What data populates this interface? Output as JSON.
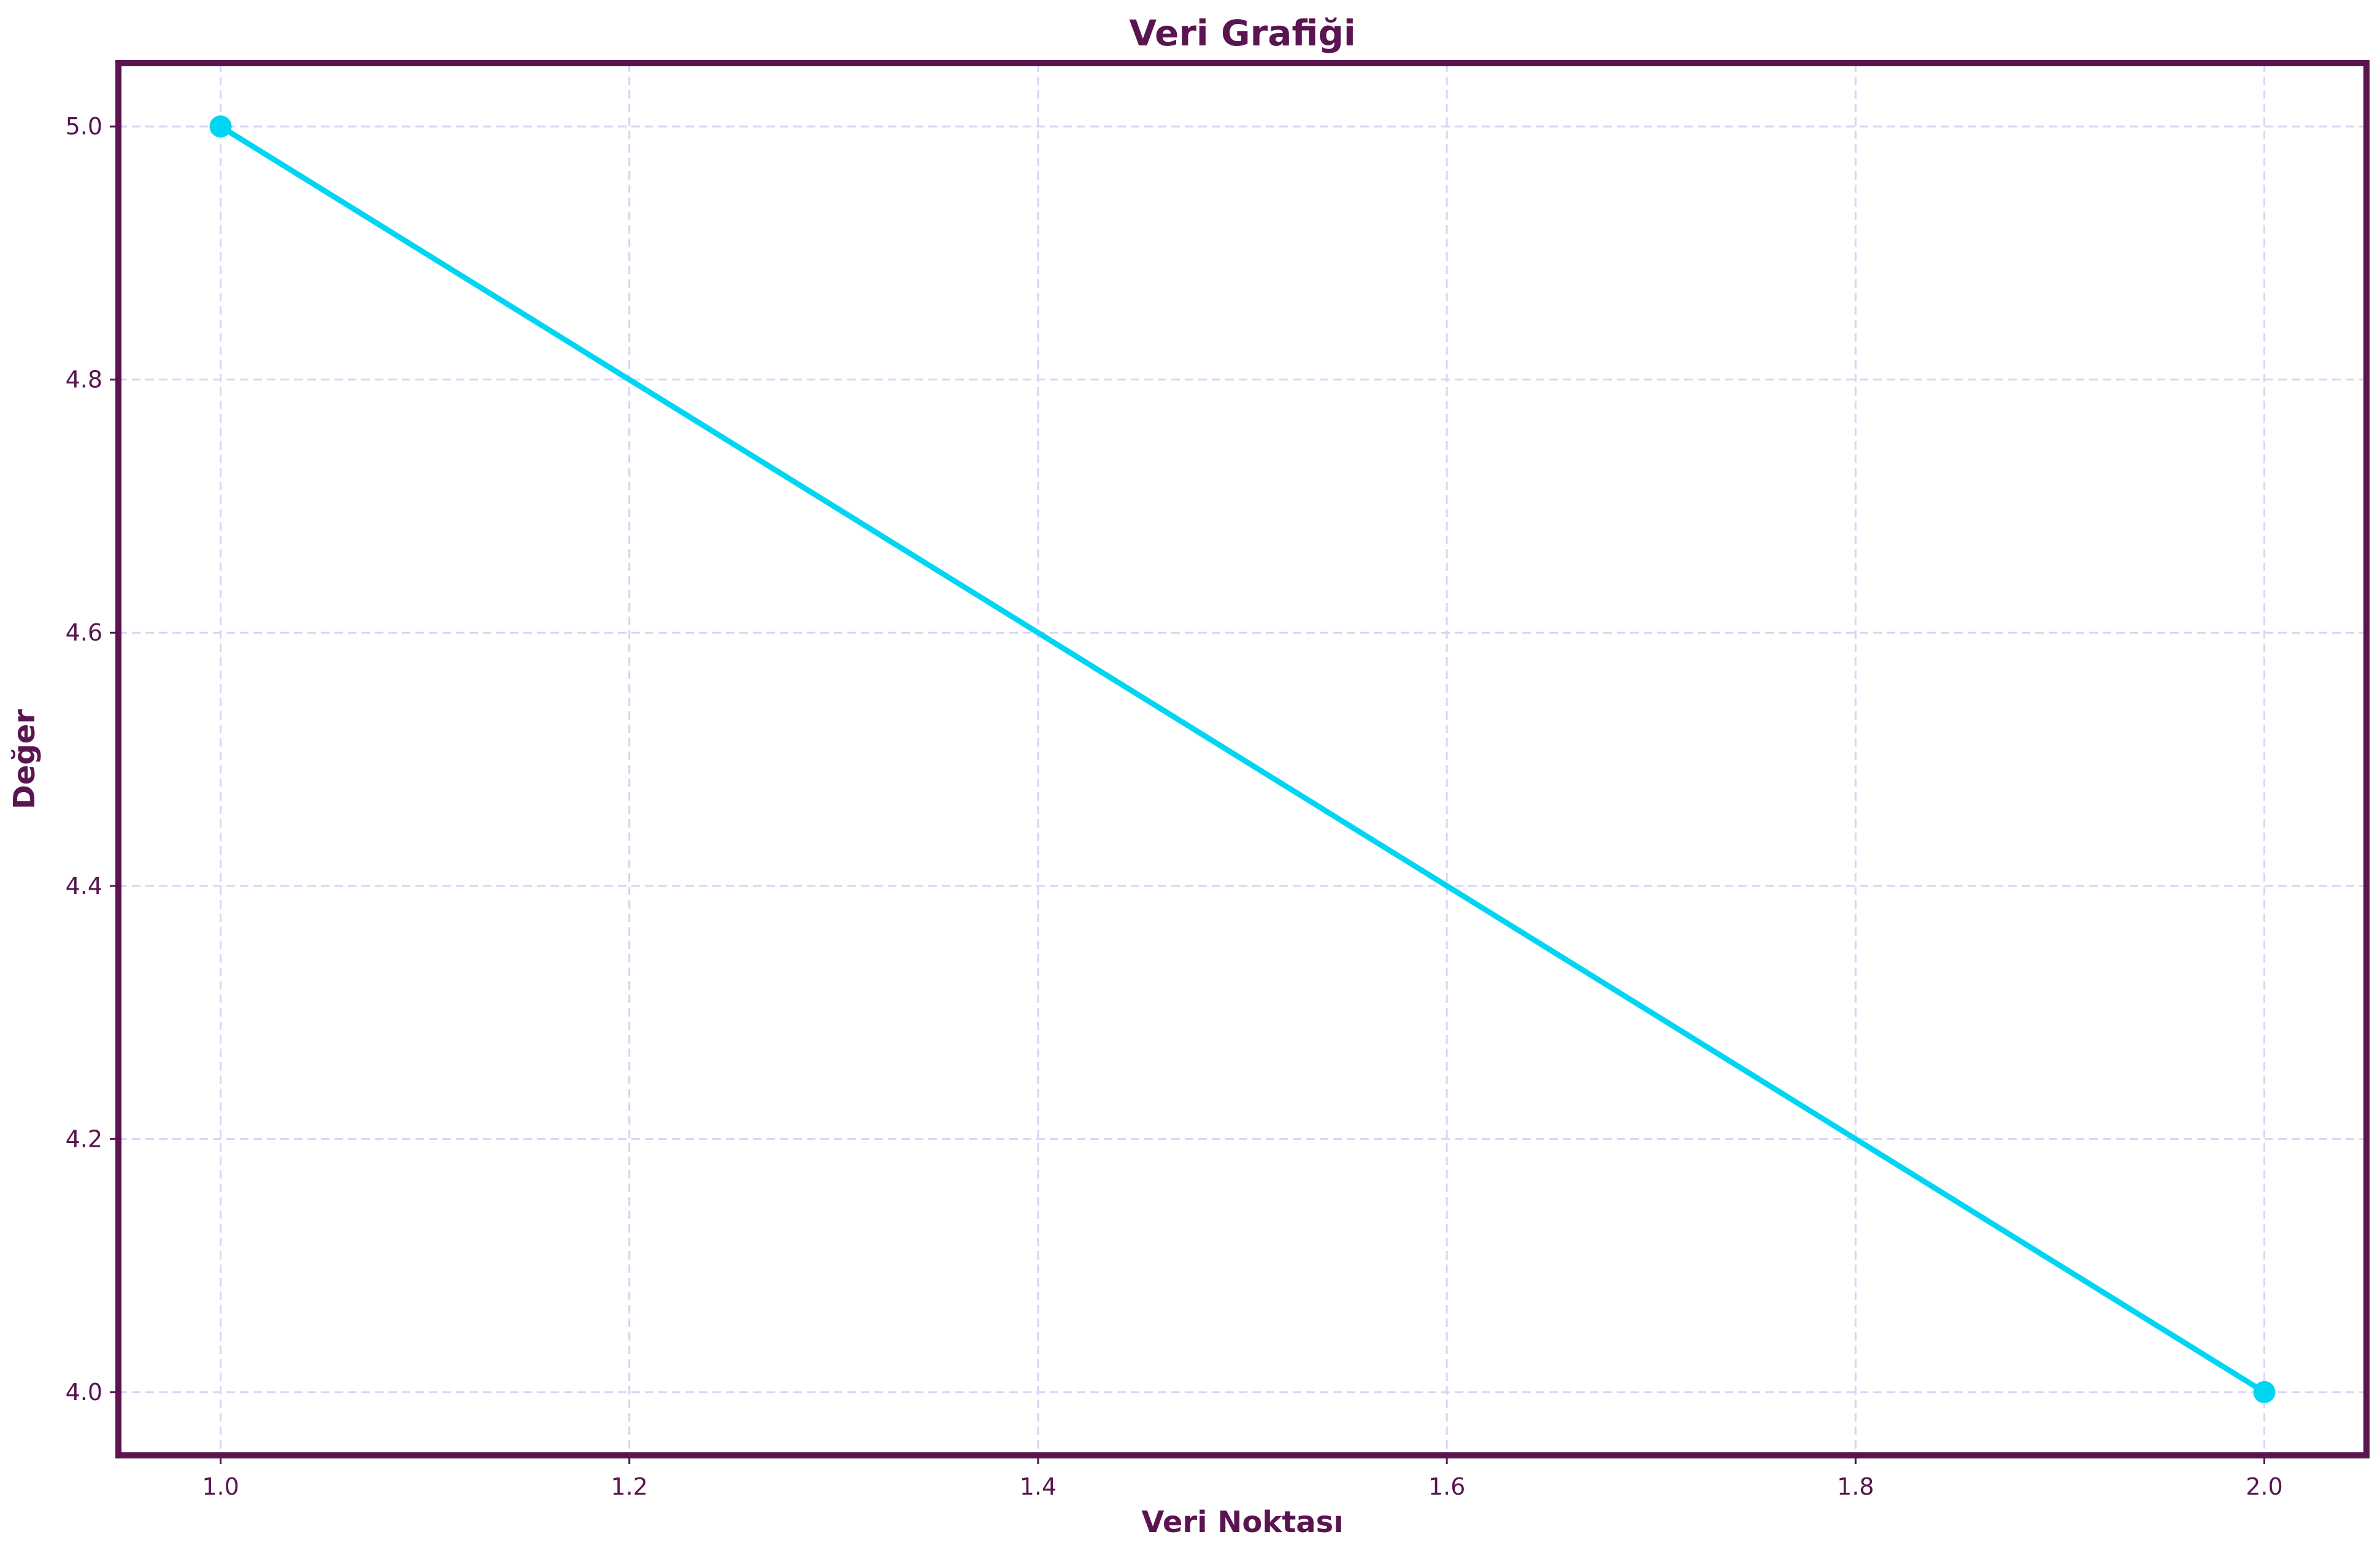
{
  "colors": {
    "frame": "#5a1450",
    "text": "#5a1450",
    "line": "#00d5f2",
    "grid": "#dcd3f5",
    "background": "#ffffff"
  },
  "chart_data": {
    "type": "line",
    "title": "Veri Grafiği",
    "xlabel": "Veri Noktası",
    "ylabel": "Değer",
    "x": [
      1.0,
      2.0
    ],
    "series": [
      {
        "name": "Değer",
        "values": [
          5.0,
          4.0
        ],
        "color": "#00d5f2",
        "marker": "circle"
      }
    ],
    "xlim": [
      0.95,
      2.05
    ],
    "ylim": [
      3.95,
      5.05
    ],
    "xticks": [
      1.0,
      1.2,
      1.4,
      1.6,
      1.8,
      2.0
    ],
    "xtick_labels": [
      "1.0",
      "1.2",
      "1.4",
      "1.6",
      "1.8",
      "2.0"
    ],
    "yticks": [
      4.0,
      4.2,
      4.4,
      4.6,
      4.8,
      5.0
    ],
    "ytick_labels": [
      "4.0",
      "4.2",
      "4.4",
      "4.6",
      "4.8",
      "5.0"
    ],
    "grid": true,
    "grid_style": "dashed",
    "legend": false
  }
}
